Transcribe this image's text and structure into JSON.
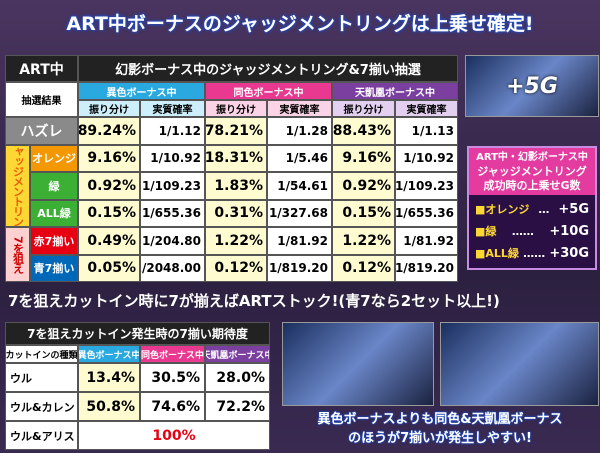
{
  "header": {
    "title": "ART中ボーナスのジャッジメントリングは上乗せ確定!"
  },
  "table1": {
    "corner": "ART中",
    "title": "幻影ボーナス中のジャッジメントリング&7揃い抽選",
    "row_header": "抽選結果",
    "columns": [
      "異色ボーナス中",
      "同色ボーナス中",
      "天凱凰ボーナス中"
    ],
    "subcolumns": [
      "振り分け",
      "実質確率"
    ],
    "groups": [
      "ジャッジメントリング",
      "7を狙え"
    ],
    "rows": [
      {
        "label": "ハズレ",
        "cells": [
          "89.24%",
          "1/1.12",
          "78.21%",
          "1/1.28",
          "88.43%",
          "1/1.13"
        ]
      },
      {
        "label": "オレンジ",
        "cells": [
          "9.16%",
          "1/10.92",
          "18.31%",
          "1/5.46",
          "9.16%",
          "1/10.92"
        ]
      },
      {
        "label": "緑",
        "cells": [
          "0.92%",
          "1/109.23",
          "1.83%",
          "1/54.61",
          "0.92%",
          "1/109.23"
        ]
      },
      {
        "label": "ALL緑",
        "cells": [
          "0.15%",
          "1/655.36",
          "0.31%",
          "1/327.68",
          "0.15%",
          "1/655.36"
        ]
      },
      {
        "label": "赤7揃い",
        "cells": [
          "0.49%",
          "1/204.80",
          "1.22%",
          "1/81.92",
          "1.22%",
          "1/81.92"
        ]
      },
      {
        "label": "青7揃い",
        "cells": [
          "0.05%",
          "1/2048.00",
          "0.12%",
          "1/819.20",
          "0.12%",
          "1/819.20"
        ]
      }
    ]
  },
  "side_box": {
    "image_text": "+5G",
    "title_lines": [
      "ART中・幻影ボーナス中",
      "ジャッジメントリング",
      "成功時の上乗せG数"
    ],
    "items": [
      {
        "label": "■オレンジ",
        "dots": "…",
        "value": "+5G"
      },
      {
        "label": "■緑",
        "dots": "……",
        "value": "+10G"
      },
      {
        "label": "■ALL緑",
        "dots": "……",
        "value": "+30G"
      }
    ]
  },
  "banner": "7を狙えカットイン時に7が揃えばARTストック!(青7なら2セット以上!)",
  "table2": {
    "title": "7を狙えカットイン発生時の7揃い期待度",
    "row_header": "カットインの種類",
    "columns": [
      "異色ボーナス中",
      "同色ボーナス中",
      "天凱凰ボーナス中"
    ],
    "rows": [
      {
        "label": "ウル",
        "cells": [
          "13.4%",
          "30.5%",
          "28.0%"
        ]
      },
      {
        "label": "ウル&カレン",
        "cells": [
          "50.8%",
          "74.6%",
          "72.2%"
        ]
      },
      {
        "label": "ウル&アリス",
        "cells": [
          "100%"
        ]
      }
    ]
  },
  "caption": [
    "異色ボーナスよりも同色&天凱凰ボーナス",
    "のほうが7揃いが発生しやすい!"
  ]
}
